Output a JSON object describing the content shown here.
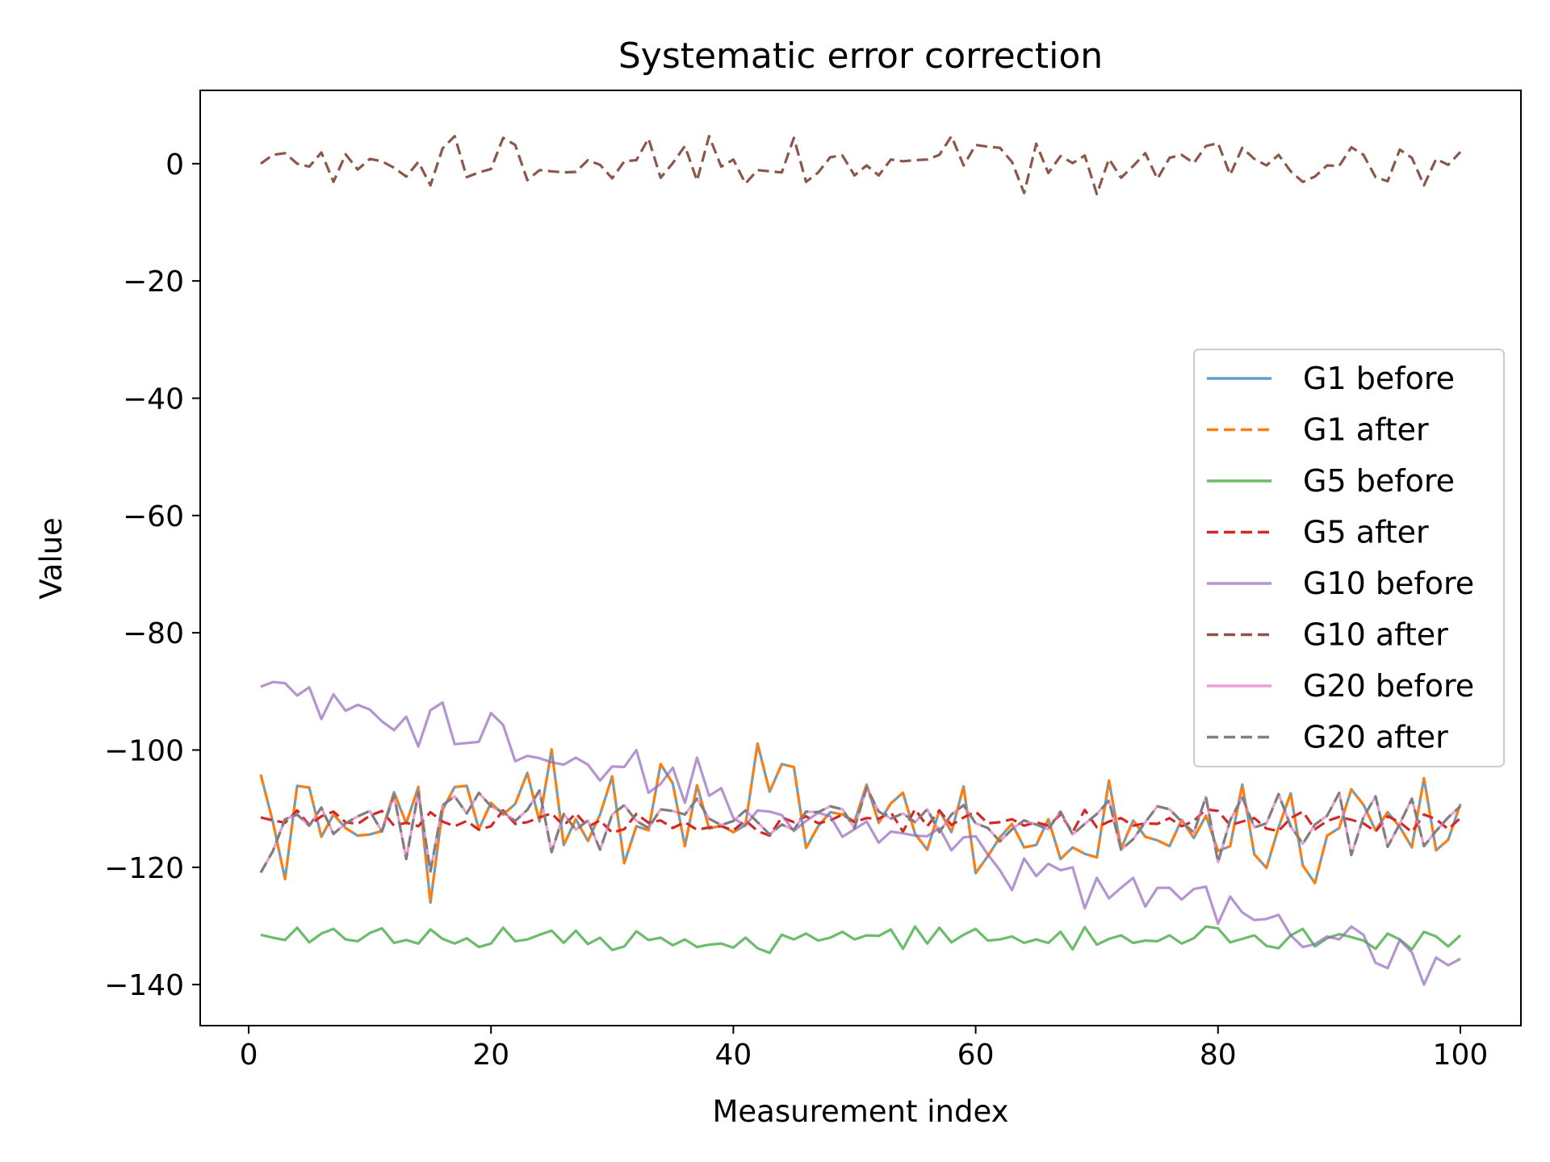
{
  "chart_data": {
    "type": "line",
    "title": "Systematic error correction",
    "xlabel": "Measurement index",
    "ylabel": "Value",
    "xlim": [
      -4,
      105
    ],
    "ylim": [
      -147,
      12.5
    ],
    "xticks": [
      0,
      20,
      40,
      60,
      80,
      100
    ],
    "yticks": [
      0,
      -20,
      -40,
      -60,
      -80,
      -100,
      -120,
      -140
    ],
    "ytick_labels": [
      "0",
      "−20",
      "−40",
      "−60",
      "−80",
      "−100",
      "−120",
      "−140"
    ],
    "xtick_labels": [
      "0",
      "20",
      "40",
      "60",
      "80",
      "100"
    ],
    "grid": false,
    "legend_position": "center-right",
    "x_start": 1,
    "x_step": 1,
    "series": [
      {
        "name": "G1 before",
        "color": "#1f77b4",
        "dash": "solid",
        "opacity": 0.7,
        "values": [
          -104.2,
          -112.3,
          -122.0,
          -106.1,
          -106.4,
          -114.8,
          -111.0,
          -113.3,
          -114.6,
          -114.4,
          -113.8,
          -107.2,
          -112.5,
          -106.3,
          -126.0,
          -110.2,
          -106.3,
          -106.1,
          -113.5,
          -109.0,
          -111.0,
          -109.2,
          -103.9,
          -112.2,
          -99.9,
          -116.2,
          -111.8,
          -115.5,
          -111.0,
          -104.5,
          -119.3,
          -113.0,
          -113.7,
          -102.4,
          -105.7,
          -116.4,
          -106.0,
          -113.4,
          -112.9,
          -114.0,
          -112.8,
          -98.9,
          -107.1,
          -102.4,
          -102.9,
          -116.7,
          -113.0,
          -110.6,
          -111.0,
          -112.2,
          -105.9,
          -112.4,
          -109.1,
          -107.3,
          -114.3,
          -117.0,
          -110.3,
          -114.0,
          -106.2,
          -121.0,
          -118.1,
          -114.9,
          -112.6,
          -116.6,
          -116.2,
          -111.8,
          -118.6,
          -116.6,
          -117.7,
          -118.3,
          -105.2,
          -116.8,
          -112.0,
          -114.8,
          -115.4,
          -116.4,
          -111.9,
          -115.0,
          -111.2,
          -117.2,
          -116.4,
          -105.9,
          -117.8,
          -120.1,
          -113.2,
          -107.4,
          -119.7,
          -122.7,
          -114.6,
          -113.3,
          -106.7,
          -109.3,
          -113.7,
          -110.6,
          -113.1,
          -116.6,
          -104.8,
          -117.1,
          -115.3,
          -109.2
        ]
      },
      {
        "name": "G1 after",
        "color": "#ff7f0e",
        "dash": "dashed",
        "opacity": 1,
        "values": [
          -104.2,
          -112.3,
          -122.0,
          -106.1,
          -106.4,
          -114.8,
          -111.0,
          -113.3,
          -114.6,
          -114.4,
          -113.8,
          -107.2,
          -112.5,
          -106.3,
          -126.0,
          -110.2,
          -106.3,
          -106.1,
          -113.5,
          -109.0,
          -111.0,
          -109.2,
          -103.9,
          -112.2,
          -99.9,
          -116.2,
          -111.8,
          -115.5,
          -111.0,
          -104.5,
          -119.3,
          -113.0,
          -113.7,
          -102.4,
          -105.7,
          -116.4,
          -106.0,
          -113.4,
          -112.9,
          -114.0,
          -112.8,
          -98.9,
          -107.1,
          -102.4,
          -102.9,
          -116.7,
          -113.0,
          -110.6,
          -111.0,
          -112.2,
          -105.9,
          -112.4,
          -109.1,
          -107.3,
          -114.3,
          -117.0,
          -110.3,
          -114.0,
          -106.2,
          -121.0,
          -118.1,
          -114.9,
          -112.6,
          -116.6,
          -116.2,
          -111.8,
          -118.6,
          -116.6,
          -117.7,
          -118.3,
          -105.2,
          -116.8,
          -112.0,
          -114.8,
          -115.4,
          -116.4,
          -111.9,
          -115.0,
          -111.2,
          -117.2,
          -116.4,
          -105.9,
          -117.8,
          -120.1,
          -113.2,
          -107.4,
          -119.7,
          -122.7,
          -114.6,
          -113.3,
          -106.7,
          -109.3,
          -113.7,
          -110.6,
          -113.1,
          -116.6,
          -104.8,
          -117.1,
          -115.3,
          -109.2
        ]
      },
      {
        "name": "G5 before",
        "color": "#2ca02c",
        "dash": "solid",
        "opacity": 0.7,
        "values": [
          -131.5,
          -132.0,
          -132.4,
          -130.3,
          -132.8,
          -131.3,
          -130.5,
          -132.3,
          -132.6,
          -131.2,
          -130.4,
          -132.9,
          -132.4,
          -133.0,
          -130.6,
          -132.2,
          -133.0,
          -132.1,
          -133.6,
          -133.0,
          -130.3,
          -132.6,
          -132.3,
          -131.5,
          -130.8,
          -132.9,
          -130.8,
          -133.1,
          -132.0,
          -134.1,
          -133.5,
          -130.9,
          -132.4,
          -132.0,
          -133.3,
          -132.3,
          -133.6,
          -133.2,
          -133.0,
          -133.7,
          -132.0,
          -133.8,
          -134.6,
          -131.5,
          -132.3,
          -131.3,
          -132.5,
          -132.0,
          -131.0,
          -132.3,
          -131.6,
          -131.7,
          -130.6,
          -133.9,
          -130.1,
          -133.0,
          -130.3,
          -132.8,
          -131.5,
          -130.5,
          -132.5,
          -132.3,
          -131.8,
          -132.9,
          -132.3,
          -132.9,
          -131.0,
          -134.0,
          -130.2,
          -133.2,
          -132.2,
          -131.6,
          -132.9,
          -132.5,
          -132.6,
          -131.6,
          -133.0,
          -132.1,
          -130.1,
          -130.4,
          -132.8,
          -132.2,
          -131.6,
          -133.4,
          -133.8,
          -131.6,
          -130.5,
          -133.5,
          -132.1,
          -131.4,
          -131.9,
          -132.5,
          -133.9,
          -131.3,
          -132.3,
          -134.0,
          -131.0,
          -131.8,
          -133.5,
          -131.6
        ]
      },
      {
        "name": "G5 after",
        "color": "#d62728",
        "dash": "dashed",
        "opacity": 1,
        "values": [
          -111.5,
          -112.0,
          -112.4,
          -110.3,
          -112.8,
          -111.3,
          -110.5,
          -112.3,
          -112.6,
          -111.2,
          -110.4,
          -112.9,
          -112.4,
          -113.0,
          -110.6,
          -112.2,
          -113.0,
          -112.1,
          -113.6,
          -113.0,
          -110.3,
          -112.6,
          -112.3,
          -111.5,
          -110.8,
          -112.9,
          -110.8,
          -113.1,
          -112.0,
          -114.1,
          -113.5,
          -110.9,
          -112.4,
          -112.0,
          -113.3,
          -112.3,
          -113.6,
          -113.2,
          -113.0,
          -113.7,
          -112.0,
          -113.8,
          -114.6,
          -111.5,
          -112.3,
          -111.3,
          -112.5,
          -112.0,
          -111.0,
          -112.3,
          -111.6,
          -111.7,
          -110.6,
          -113.9,
          -110.1,
          -113.0,
          -110.3,
          -112.8,
          -111.5,
          -110.5,
          -112.5,
          -112.3,
          -111.8,
          -112.9,
          -112.3,
          -112.9,
          -111.0,
          -114.0,
          -110.2,
          -113.2,
          -112.2,
          -111.6,
          -112.9,
          -112.5,
          -112.6,
          -111.6,
          -113.0,
          -112.1,
          -110.1,
          -110.4,
          -112.8,
          -112.2,
          -111.6,
          -113.4,
          -113.8,
          -111.6,
          -110.5,
          -113.5,
          -112.1,
          -111.4,
          -111.9,
          -112.5,
          -113.9,
          -111.3,
          -112.3,
          -114.0,
          -111.0,
          -111.8,
          -113.5,
          -111.6
        ]
      },
      {
        "name": "G10 before",
        "color": "#9467bd",
        "dash": "solid",
        "opacity": 0.7,
        "values": [
          -89.2,
          -88.4,
          -88.6,
          -90.7,
          -89.3,
          -94.7,
          -90.5,
          -93.3,
          -92.3,
          -93.1,
          -95.1,
          -96.6,
          -94.3,
          -99.4,
          -93.2,
          -91.9,
          -99.0,
          -98.8,
          -98.6,
          -93.7,
          -95.7,
          -101.9,
          -101.0,
          -101.4,
          -102.1,
          -102.5,
          -101.3,
          -102.5,
          -105.2,
          -102.8,
          -102.9,
          -100.0,
          -107.3,
          -105.8,
          -103.0,
          -109.0,
          -101.3,
          -107.8,
          -106.5,
          -111.6,
          -112.9,
          -110.3,
          -110.5,
          -111.1,
          -113.8,
          -112.1,
          -110.7,
          -111.3,
          -114.8,
          -113.5,
          -112.2,
          -115.8,
          -113.9,
          -114.2,
          -114.6,
          -114.7,
          -113.3,
          -117.1,
          -114.9,
          -114.7,
          -117.8,
          -120.5,
          -123.9,
          -118.5,
          -121.5,
          -119.4,
          -120.5,
          -120.0,
          -127.0,
          -121.8,
          -125.3,
          -123.5,
          -121.8,
          -126.7,
          -123.5,
          -123.5,
          -125.5,
          -123.7,
          -123.3,
          -129.6,
          -125.0,
          -127.7,
          -129.0,
          -128.8,
          -128.1,
          -131.6,
          -133.6,
          -133.1,
          -131.8,
          -132.3,
          -130.1,
          -131.5,
          -136.3,
          -137.2,
          -132.4,
          -134.5,
          -140.0,
          -135.4,
          -136.7,
          -135.6
        ]
      },
      {
        "name": "G10 after",
        "color": "#8c564b",
        "dash": "dashed",
        "opacity": 1,
        "values": [
          0.0,
          1.5,
          1.8,
          0.0,
          -0.5,
          1.9,
          -3.1,
          1.6,
          -1.0,
          0.8,
          0.4,
          -0.7,
          -2.2,
          0.3,
          -3.7,
          2.6,
          4.7,
          -2.3,
          -1.5,
          -0.9,
          4.4,
          3.2,
          -2.8,
          -1.1,
          -1.3,
          -1.5,
          -1.4,
          0.6,
          -0.2,
          -2.5,
          0.4,
          0.6,
          4.3,
          -2.4,
          0.1,
          3.0,
          -2.9,
          4.7,
          -0.5,
          0.7,
          -3.4,
          -1.1,
          -1.3,
          -1.5,
          4.4,
          -3.1,
          -1.5,
          1.1,
          1.4,
          -2.0,
          -0.3,
          -2.0,
          0.7,
          0.4,
          0.6,
          0.7,
          1.5,
          4.7,
          -0.3,
          3.2,
          2.9,
          2.7,
          0.3,
          -5.0,
          3.4,
          -1.6,
          1.3,
          0.1,
          1.4,
          -5.2,
          0.8,
          -2.4,
          -0.4,
          1.8,
          -2.6,
          1.0,
          1.5,
          0.1,
          3.0,
          3.5,
          -1.9,
          2.7,
          0.8,
          -0.3,
          1.5,
          -1.3,
          -3.1,
          -2.2,
          -0.3,
          -0.4,
          2.8,
          1.5,
          -2.3,
          -3.0,
          2.4,
          1.0,
          -3.7,
          0.8,
          -0.2,
          2.0
        ]
      },
      {
        "name": "G20 before",
        "color": "#e377c2",
        "dash": "solid",
        "opacity": 0.7,
        "values": [
          -120.9,
          -117.2,
          -111.8,
          -111.0,
          -112.9,
          -109.8,
          -114.3,
          -112.5,
          -111.3,
          -110.4,
          -113.9,
          -107.7,
          -118.6,
          -107.2,
          -120.7,
          -109.4,
          -107.9,
          -110.8,
          -107.3,
          -109.6,
          -110.6,
          -112.1,
          -110.2,
          -106.9,
          -117.4,
          -110.9,
          -113.6,
          -112.0,
          -117.0,
          -111.0,
          -109.4,
          -112.1,
          -113.3,
          -110.1,
          -110.4,
          -111.0,
          -108.3,
          -111.7,
          -112.8,
          -112.1,
          -110.3,
          -112.3,
          -114.4,
          -112.7,
          -113.6,
          -110.5,
          -110.6,
          -109.6,
          -110.1,
          -113.3,
          -106.4,
          -110.5,
          -111.7,
          -110.8,
          -112.3,
          -110.1,
          -114.0,
          -111.0,
          -109.4,
          -112.5,
          -113.3,
          -115.6,
          -113.5,
          -112.0,
          -112.7,
          -113.5,
          -110.5,
          -114.4,
          -112.6,
          -110.9,
          -108.6,
          -117.0,
          -115.2,
          -112.3,
          -109.6,
          -110.1,
          -112.2,
          -114.1,
          -108.0,
          -119.1,
          -112.0,
          -108.0,
          -113.2,
          -112.5,
          -107.5,
          -113.0,
          -116.0,
          -112.7,
          -111.2,
          -107.3,
          -117.9,
          -111.5,
          -107.9,
          -116.5,
          -112.6,
          -108.3,
          -116.4,
          -113.8,
          -111.5,
          -109.6
        ]
      },
      {
        "name": "G20 after",
        "color": "#7f7f7f",
        "dash": "dashed",
        "opacity": 1,
        "values": [
          -120.9,
          -117.2,
          -111.8,
          -111.0,
          -112.9,
          -109.8,
          -114.3,
          -112.5,
          -111.3,
          -110.4,
          -113.9,
          -107.7,
          -118.6,
          -107.2,
          -120.7,
          -109.4,
          -107.9,
          -110.8,
          -107.3,
          -109.6,
          -110.6,
          -112.1,
          -110.2,
          -106.9,
          -117.4,
          -110.9,
          -113.6,
          -112.0,
          -117.0,
          -111.0,
          -109.4,
          -112.1,
          -113.3,
          -110.1,
          -110.4,
          -111.0,
          -108.3,
          -111.7,
          -112.8,
          -112.1,
          -110.3,
          -112.3,
          -114.4,
          -112.7,
          -113.6,
          -110.5,
          -110.6,
          -109.6,
          -110.1,
          -113.3,
          -106.4,
          -110.5,
          -111.7,
          -110.8,
          -112.3,
          -110.1,
          -114.0,
          -111.0,
          -109.4,
          -112.5,
          -113.3,
          -115.6,
          -113.5,
          -112.0,
          -112.7,
          -113.5,
          -110.5,
          -114.4,
          -112.6,
          -110.9,
          -108.6,
          -117.0,
          -115.2,
          -112.3,
          -109.6,
          -110.1,
          -112.2,
          -114.1,
          -108.0,
          -119.1,
          -112.0,
          -108.0,
          -113.2,
          -112.5,
          -107.5,
          -113.0,
          -116.0,
          -112.7,
          -111.2,
          -107.3,
          -117.9,
          -111.5,
          -107.9,
          -116.5,
          -112.6,
          -108.3,
          -116.4,
          -113.8,
          -111.5,
          -109.6
        ]
      }
    ]
  }
}
